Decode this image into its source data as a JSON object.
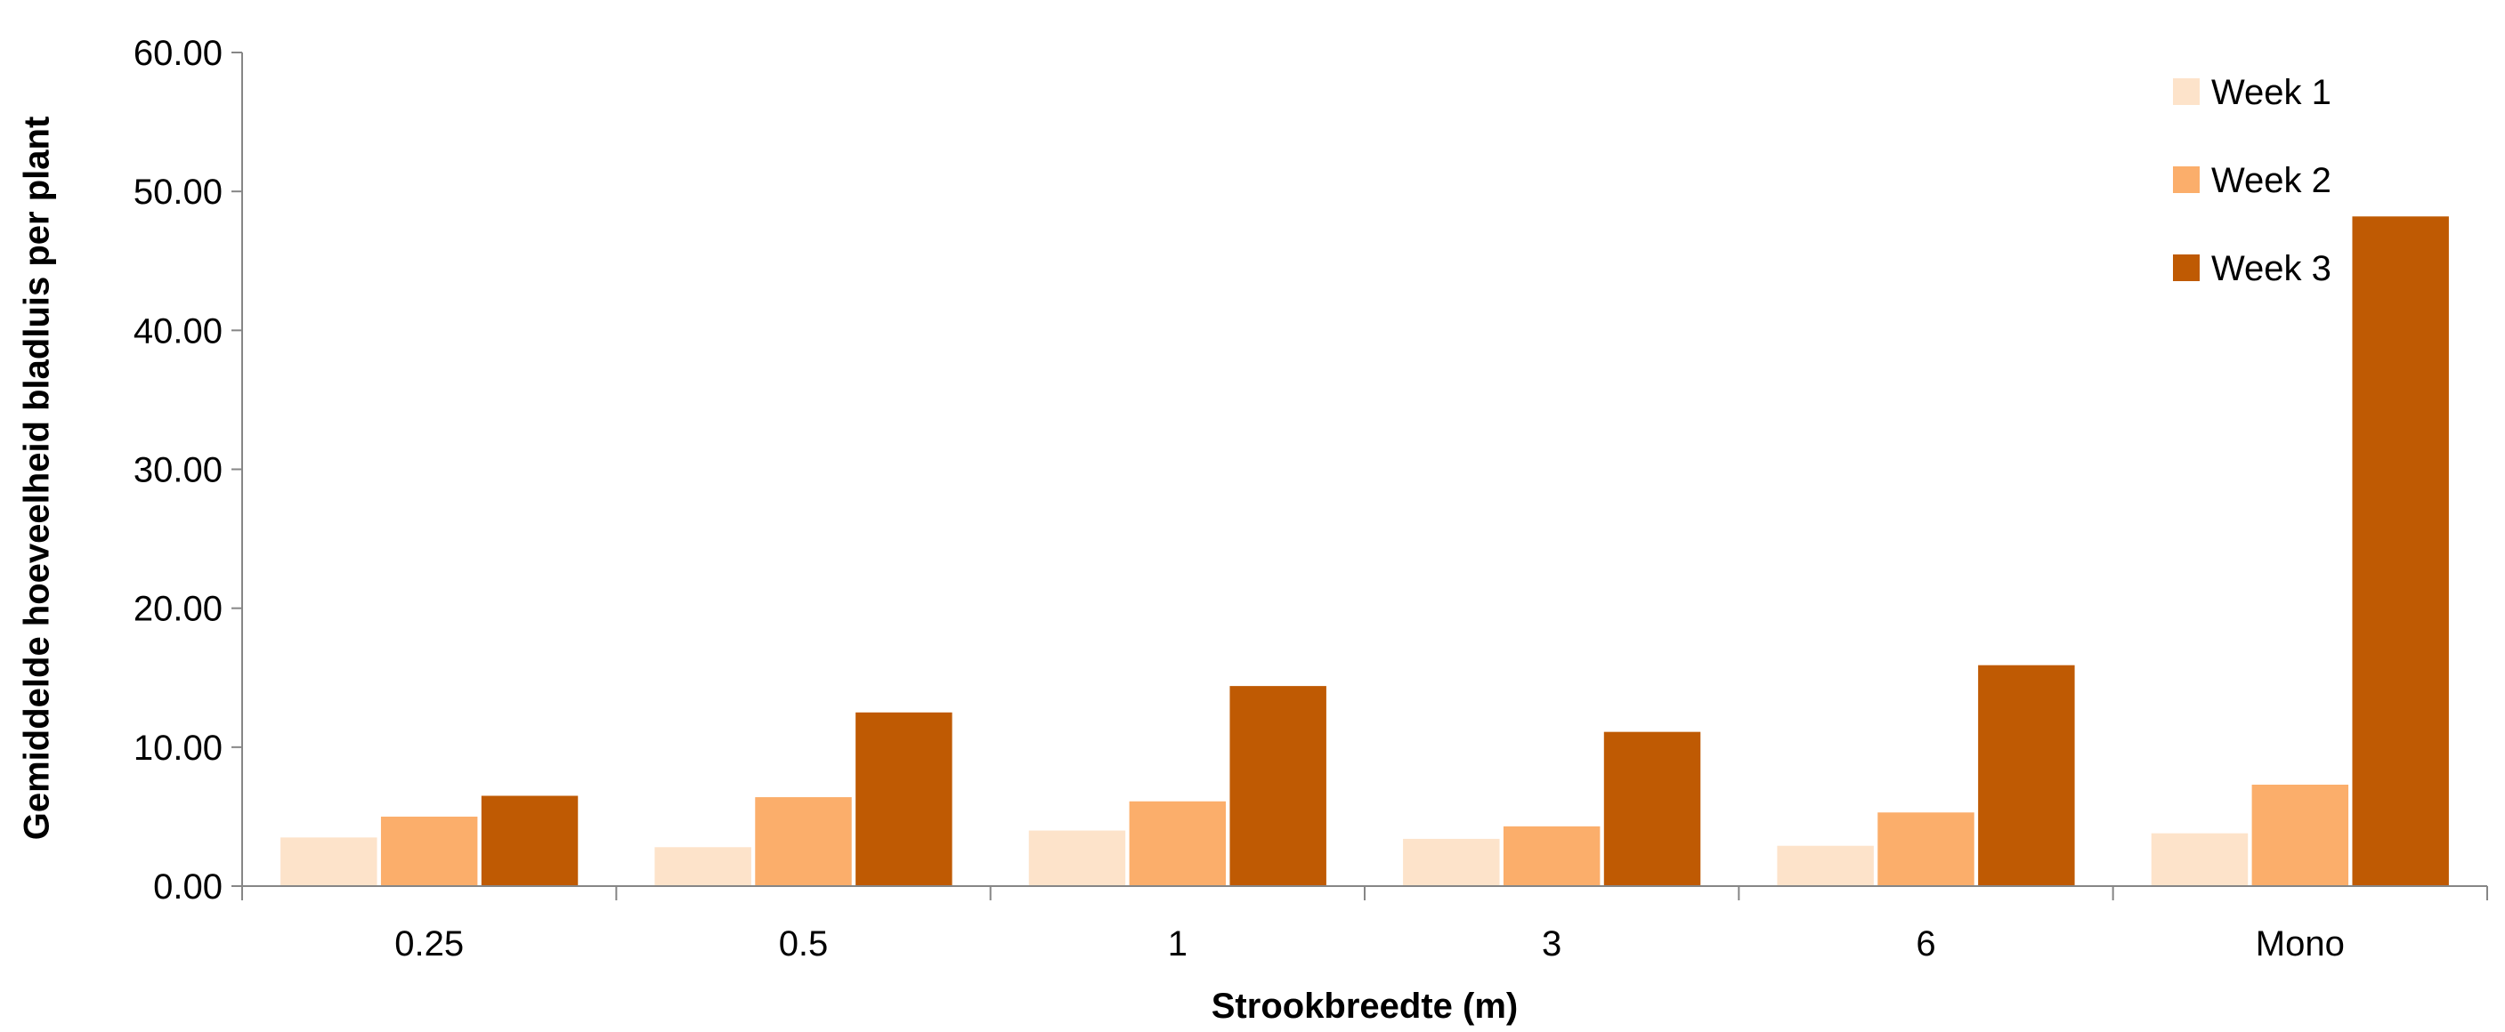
{
  "chart_data": {
    "type": "bar",
    "title": "",
    "xlabel": "Strookbreedte (m)",
    "ylabel": "Gemiddelde hoeveelheid bladluis per plant",
    "categories": [
      "0.25",
      "0.5",
      "1",
      "3",
      "6",
      "Mono"
    ],
    "ylim": [
      0,
      60
    ],
    "yticks": [
      "0.00",
      "10.00",
      "20.00",
      "30.00",
      "40.00",
      "50.00",
      "60.00"
    ],
    "grid": false,
    "legend_position": "top-right",
    "series": [
      {
        "name": "Week 1",
        "color": "#FDE3CA",
        "values": [
          3.5,
          2.8,
          4.0,
          3.4,
          2.9,
          3.8
        ]
      },
      {
        "name": "Week 2",
        "color": "#FBAE6B",
        "values": [
          5.0,
          6.4,
          6.1,
          4.3,
          5.3,
          7.3
        ]
      },
      {
        "name": "Week 3",
        "color": "#BF5A03",
        "values": [
          6.5,
          12.5,
          14.4,
          11.1,
          15.9,
          48.2
        ]
      }
    ]
  }
}
